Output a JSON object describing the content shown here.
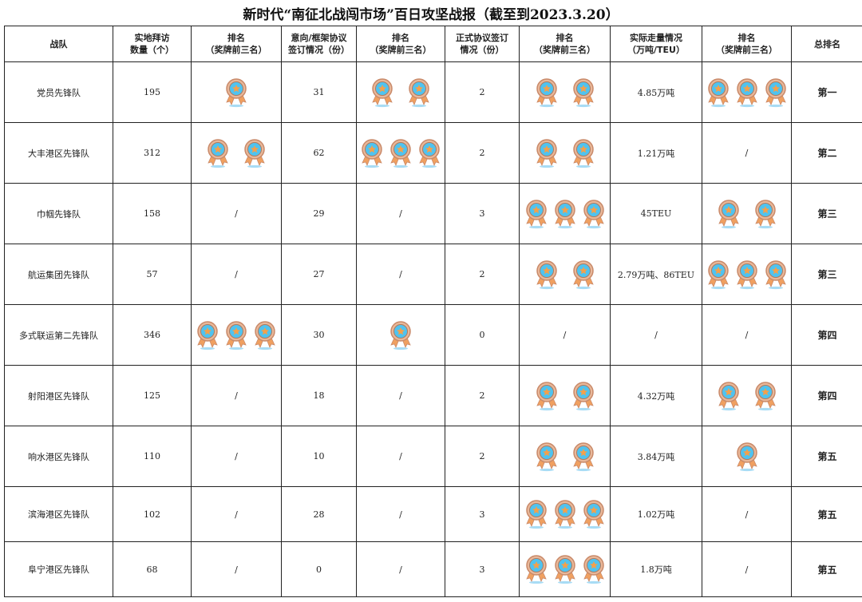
{
  "title": "新时代“南征北战闯市场”百日攻坚战报（截至到2023.3.20）",
  "colors": {
    "medal_ring": "#c98a6a",
    "medal_face": "#4fc3f0",
    "medal_star": "#f5a04a",
    "ribbon": "#f0a060"
  },
  "headers": [
    "战队",
    "实地拜访\n数量（个）",
    "排名\n（奖牌前三名）",
    "意向/框架协议\n签订情况（份）",
    "排名\n（奖牌前三名）",
    "正式协议签订\n情况（份）",
    "排名\n（奖牌前三名）",
    "实际走量情况\n（万吨/TEU）",
    "排名\n（奖牌前三名）",
    "总排名"
  ],
  "rows": [
    {
      "team": "党员先锋队",
      "visits": "195",
      "visit_medals": 1,
      "intent": "31",
      "intent_medals": 2,
      "formal": "2",
      "formal_medals": 2,
      "volume": "4.85万吨",
      "volume_medals": 3,
      "overall": "第一"
    },
    {
      "team": "大丰港区先锋队",
      "visits": "312",
      "visit_medals": 2,
      "intent": "62",
      "intent_medals": 3,
      "formal": "2",
      "formal_medals": 2,
      "volume": "1.21万吨",
      "volume_medals": 0,
      "overall": "第二"
    },
    {
      "team": "巾帼先锋队",
      "visits": "158",
      "visit_medals": 0,
      "intent": "29",
      "intent_medals": 0,
      "formal": "3",
      "formal_medals": 3,
      "volume": "45TEU",
      "volume_medals": 2,
      "overall": "第三"
    },
    {
      "team": "航运集团先锋队",
      "visits": "57",
      "visit_medals": 0,
      "intent": "27",
      "intent_medals": 0,
      "formal": "2",
      "formal_medals": 2,
      "volume": "2.79万吨、86TEU",
      "volume_medals": 3,
      "overall": "第三"
    },
    {
      "team": "多式联运第二先锋队",
      "visits": "346",
      "visit_medals": 3,
      "intent": "30",
      "intent_medals": 1,
      "formal": "0",
      "formal_medals": 0,
      "volume": "/",
      "volume_medals": 0,
      "overall": "第四"
    },
    {
      "team": "射阳港区先锋队",
      "visits": "125",
      "visit_medals": 0,
      "intent": "18",
      "intent_medals": 0,
      "formal": "2",
      "formal_medals": 2,
      "volume": "4.32万吨",
      "volume_medals": 2,
      "overall": "第四"
    },
    {
      "team": "响水港区先锋队",
      "visits": "110",
      "visit_medals": 0,
      "intent": "10",
      "intent_medals": 0,
      "formal": "2",
      "formal_medals": 2,
      "volume": "3.84万吨",
      "volume_medals": 1,
      "overall": "第五"
    },
    {
      "team": "滨海港区先锋队",
      "visits": "102",
      "visit_medals": 0,
      "intent": "28",
      "intent_medals": 0,
      "formal": "3",
      "formal_medals": 3,
      "volume": "1.02万吨",
      "volume_medals": 0,
      "overall": "第五"
    },
    {
      "team": "阜宁港区先锋队",
      "visits": "68",
      "visit_medals": 0,
      "intent": "0",
      "intent_medals": 0,
      "formal": "3",
      "formal_medals": 3,
      "volume": "1.8万吨",
      "volume_medals": 0,
      "overall": "第五"
    }
  ],
  "empty_mark": "/"
}
